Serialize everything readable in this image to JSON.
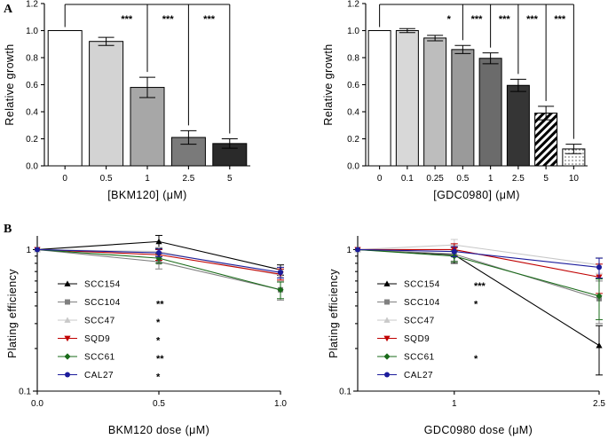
{
  "panel_labels": {
    "a": "A",
    "b": "B"
  },
  "chart_data": [
    {
      "id": "bkm_bar",
      "type": "bar",
      "title": "",
      "xlabel": "[BKM120] (μM)",
      "ylabel": "Relative growth",
      "ylim": [
        0,
        1.2
      ],
      "yticks": [
        "0.0",
        "0.2",
        "0.4",
        "0.6",
        "0.8",
        "1.0",
        "1.2"
      ],
      "categories": [
        "0",
        "0.5",
        "1",
        "2.5",
        "5"
      ],
      "values": [
        1.0,
        0.92,
        0.58,
        0.21,
        0.165
      ],
      "errors": [
        0,
        0.03,
        0.075,
        0.05,
        0.035
      ],
      "colors": [
        "#ffffff",
        "#d3d3d3",
        "#a7a7a7",
        "#7a7a7a",
        "#2a2a2a"
      ],
      "patterns": [
        "none",
        "none",
        "none",
        "none",
        "none"
      ],
      "significance": [
        {
          "from": 0,
          "to": 2,
          "label": "***"
        },
        {
          "from": 0,
          "to": 3,
          "label": "***"
        },
        {
          "from": 0,
          "to": 4,
          "label": "***"
        }
      ]
    },
    {
      "id": "gdc_bar",
      "type": "bar",
      "title": "",
      "xlabel": "[GDC0980] (μM)",
      "ylabel": "Relative growth",
      "ylim": [
        0,
        1.2
      ],
      "yticks": [
        "0.0",
        "0.2",
        "0.4",
        "0.6",
        "0.8",
        "1.0",
        "1.2"
      ],
      "categories": [
        "0",
        "0.1",
        "0.25",
        "0.5",
        "1",
        "2.5",
        "5",
        "10"
      ],
      "values": [
        1.0,
        1.0,
        0.945,
        0.86,
        0.795,
        0.595,
        0.39,
        0.125
      ],
      "errors": [
        0,
        0.015,
        0.02,
        0.03,
        0.04,
        0.045,
        0.05,
        0.035
      ],
      "colors": [
        "#ffffff",
        "#d8d8d8",
        "#bdbdbd",
        "#9a9a9a",
        "#6b6b6b",
        "#353535",
        "#ffffff",
        "#ffffff"
      ],
      "patterns": [
        "none",
        "none",
        "none",
        "none",
        "none",
        "none",
        "hatch",
        "dots"
      ],
      "significance": [
        {
          "from": 0,
          "to": 3,
          "label": "*"
        },
        {
          "from": 0,
          "to": 4,
          "label": "***"
        },
        {
          "from": 0,
          "to": 5,
          "label": "***"
        },
        {
          "from": 0,
          "to": 6,
          "label": "***"
        },
        {
          "from": 0,
          "to": 7,
          "label": "***"
        }
      ]
    },
    {
      "id": "bkm_line",
      "type": "line",
      "xlabel": "BKM120 dose (μM)",
      "ylabel": "Plating efficiency",
      "yscale": "log",
      "ylim": [
        0.1,
        1.25
      ],
      "yticks": [
        "0.1",
        "1"
      ],
      "x": [
        0,
        0.5,
        1.0
      ],
      "xticks": [
        "0.0",
        "0.5",
        "1.0"
      ],
      "series": [
        {
          "name": "SCC154",
          "sig": "",
          "color": "#000000",
          "marker": "triangle",
          "values": [
            1.0,
            1.14,
            0.72
          ],
          "errors": [
            0,
            0.12,
            0.06
          ]
        },
        {
          "name": "SCC104",
          "sig": "**",
          "color": "#808080",
          "marker": "square",
          "values": [
            1.0,
            0.82,
            0.52
          ],
          "errors": [
            0,
            0.09,
            0.08
          ]
        },
        {
          "name": "SCC47",
          "sig": "*",
          "color": "#c8c8c8",
          "marker": "triangle",
          "values": [
            1.0,
            0.97,
            0.66
          ],
          "errors": [
            0,
            0.07,
            0.06
          ]
        },
        {
          "name": "SQD9",
          "sig": "*",
          "color": "#c00000",
          "marker": "triangle-down",
          "values": [
            1.0,
            0.92,
            0.67
          ],
          "errors": [
            0,
            0.08,
            0.06
          ]
        },
        {
          "name": "SCC61",
          "sig": "**",
          "color": "#1a6b1a",
          "marker": "diamond",
          "values": [
            1.0,
            0.87,
            0.52
          ],
          "errors": [
            0,
            0.07,
            0.07
          ]
        },
        {
          "name": "CAL27",
          "sig": "*",
          "color": "#1c1c9c",
          "marker": "circle",
          "values": [
            1.0,
            0.95,
            0.69
          ],
          "errors": [
            0,
            0.06,
            0.06
          ]
        }
      ]
    },
    {
      "id": "gdc_line",
      "type": "line",
      "xlabel": "GDC0980 dose (μM)",
      "ylabel": "Plating efficiency",
      "yscale": "log",
      "ylim": [
        0.1,
        1.25
      ],
      "yticks": [
        "0.1",
        "1"
      ],
      "x": [
        0,
        1,
        2.5
      ],
      "xticks": [
        "1",
        "2.5"
      ],
      "xtick_values": [
        1,
        2.5
      ],
      "series": [
        {
          "name": "SCC154",
          "sig": "***",
          "color": "#000000",
          "marker": "triangle",
          "values": [
            1.0,
            0.92,
            0.21
          ],
          "errors": [
            0,
            0.12,
            0.08
          ]
        },
        {
          "name": "SCC104",
          "sig": "*",
          "color": "#808080",
          "marker": "square",
          "values": [
            1.0,
            0.93,
            0.45
          ],
          "errors": [
            0,
            0.1,
            0.15
          ]
        },
        {
          "name": "SCC47",
          "sig": "",
          "color": "#c8c8c8",
          "marker": "triangle",
          "values": [
            1.0,
            1.08,
            0.78
          ],
          "errors": [
            0,
            0.1,
            0.1
          ]
        },
        {
          "name": "SQD9",
          "sig": "",
          "color": "#c00000",
          "marker": "triangle-down",
          "values": [
            1.0,
            1.0,
            0.64
          ],
          "errors": [
            0,
            0.1,
            0.15
          ]
        },
        {
          "name": "SCC61",
          "sig": "*",
          "color": "#1a6b1a",
          "marker": "diamond",
          "values": [
            1.0,
            0.9,
            0.47
          ],
          "errors": [
            0,
            0.08,
            0.15
          ]
        },
        {
          "name": "CAL27",
          "sig": "",
          "color": "#1c1c9c",
          "marker": "circle",
          "values": [
            1.0,
            0.97,
            0.75
          ],
          "errors": [
            0,
            0.08,
            0.12
          ]
        }
      ]
    }
  ]
}
